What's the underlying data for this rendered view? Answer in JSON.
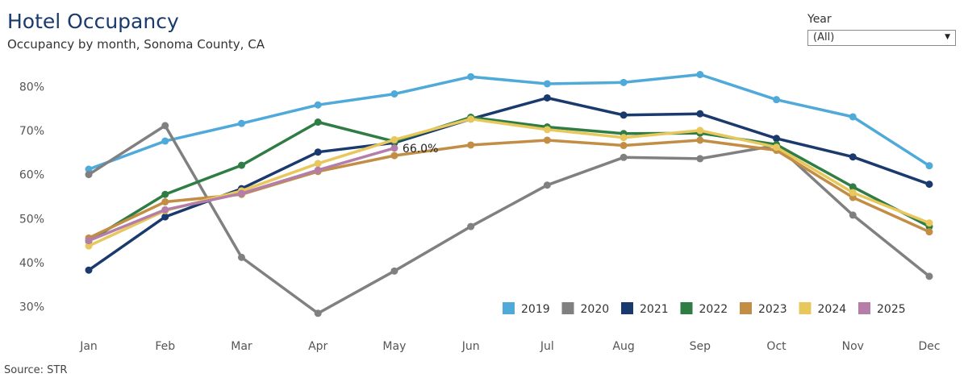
{
  "header": {
    "title": "Hotel Occupancy",
    "subtitle": "Occupancy by month, Sonoma County, CA"
  },
  "filter": {
    "label": "Year",
    "selected": "(All)"
  },
  "footer": {
    "source": "Source: STR"
  },
  "chart_data": {
    "type": "line",
    "title": "Hotel Occupancy",
    "subtitle": "Occupancy by month, Sonoma County, CA",
    "xlabel": "",
    "ylabel": "",
    "categories": [
      "Jan",
      "Feb",
      "Mar",
      "Apr",
      "May",
      "Jun",
      "Jul",
      "Aug",
      "Sep",
      "Oct",
      "Nov",
      "Dec"
    ],
    "ylim": [
      27,
      87
    ],
    "yticks": [
      30,
      40,
      50,
      60,
      70,
      80
    ],
    "ytick_labels": [
      "30%",
      "40%",
      "50%",
      "60%",
      "70%",
      "80%"
    ],
    "grid": false,
    "legend_position": "bottom-right",
    "series": [
      {
        "name": "2019",
        "color": "#4fa9d9",
        "values": [
          61.2,
          67.6,
          71.6,
          75.8,
          78.3,
          82.2,
          80.6,
          80.9,
          82.7,
          77.0,
          73.1,
          62.0
        ]
      },
      {
        "name": "2020",
        "color": "#808080",
        "values": [
          60.0,
          71.1,
          41.2,
          28.5,
          38.1,
          48.2,
          57.6,
          63.9,
          63.6,
          66.6,
          50.8,
          36.9
        ]
      },
      {
        "name": "2021",
        "color": "#1a3a6e",
        "values": [
          38.3,
          50.4,
          56.8,
          65.1,
          67.2,
          72.6,
          77.4,
          73.5,
          73.8,
          68.2,
          64.0,
          57.8
        ]
      },
      {
        "name": "2022",
        "color": "#2f7d45",
        "values": [
          44.9,
          55.5,
          62.1,
          71.9,
          67.5,
          73.0,
          70.8,
          69.3,
          69.4,
          66.8,
          57.2,
          48.2
        ]
      },
      {
        "name": "2023",
        "color": "#c28d45",
        "values": [
          45.6,
          53.8,
          55.5,
          60.7,
          64.3,
          66.7,
          67.8,
          66.6,
          67.8,
          65.5,
          54.8,
          47.0
        ]
      },
      {
        "name": "2024",
        "color": "#e8c85c",
        "values": [
          43.8,
          51.8,
          56.3,
          62.5,
          67.9,
          72.6,
          70.2,
          68.4,
          70.0,
          66.2,
          55.9,
          49.0
        ]
      },
      {
        "name": "2025",
        "color": "#b47ea8",
        "values": [
          45.0,
          52.0,
          55.7,
          61.0,
          66.0,
          null,
          null,
          null,
          null,
          null,
          null,
          null
        ]
      }
    ],
    "annotations": [
      {
        "series": "2025",
        "category": "May",
        "text": "66.0%"
      }
    ]
  }
}
